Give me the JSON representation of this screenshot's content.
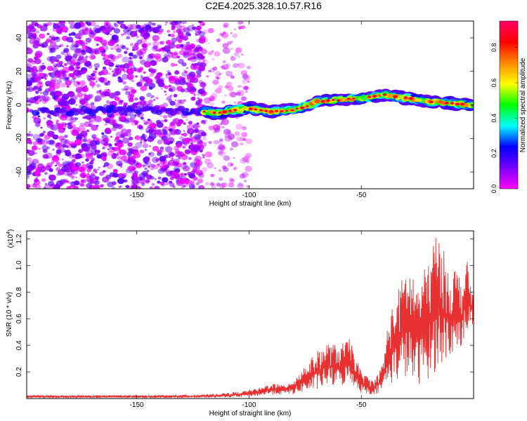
{
  "title": "C2E4.2025.328.10.57.R16",
  "chart_data": [
    {
      "type": "heatmap",
      "title": "C2E4.2025.328.10.57.R16",
      "xlabel": "Height of straight line (km)",
      "ylabel": "Frequency (Hz)",
      "xlim": [
        -199,
        0
      ],
      "ylim": [
        -50,
        50
      ],
      "xticks": [
        -150,
        -100,
        -50
      ],
      "yticks": [
        -40,
        -20,
        0,
        20,
        40
      ],
      "colorbar": {
        "label": "Normalized spectral amplitude",
        "range": [
          0,
          0.95
        ],
        "ticks": [
          "0.0",
          "0.2",
          "0.4",
          "0.6",
          "0.8"
        ],
        "tick_values": [
          0,
          0.2,
          0.4,
          0.6,
          0.8
        ],
        "colormap": [
          "#ff00ff",
          "#7700ff",
          "#0000ff",
          "#00ffff",
          "#00ff00",
          "#ffff00",
          "#ff8800",
          "#ff0000",
          "#ff0066"
        ]
      },
      "ridge": {
        "x": [
          -200,
          -180,
          -160,
          -140,
          -120,
          -115,
          -110,
          -100,
          -90,
          -80,
          -75,
          -70,
          -60,
          -50,
          -40,
          -30,
          -20,
          -10,
          0
        ],
        "y": [
          -4,
          -4,
          -3,
          -3,
          -4,
          -5,
          -4,
          -2,
          -4,
          -3,
          -1,
          2,
          3,
          4,
          6,
          4,
          2,
          1,
          0
        ]
      },
      "noise_regions": [
        {
          "x_from": -199,
          "x_to": -120,
          "level": "dense"
        },
        {
          "x_from": -120,
          "x_to": -100,
          "level": "sparse"
        }
      ]
    },
    {
      "type": "line",
      "xlabel": "Height of straight line (km)",
      "ylabel": "SNR (10 * v/v)",
      "exponent_label": "(x10",
      "exponent_sup": "4",
      "exponent_close": ")",
      "xlim": [
        -199,
        0
      ],
      "ylim": [
        0,
        1.26
      ],
      "xticks": [
        -150,
        -100,
        -50
      ],
      "yticks": [
        0.2,
        0.4,
        0.6,
        0.8,
        1.0,
        1.2
      ],
      "ytick_labels": [
        "0.2",
        "0.4",
        "0.6",
        "0.8",
        "1.0",
        "1.2"
      ],
      "series": [
        {
          "name": "SNR",
          "color": "#e83030",
          "envelope": {
            "x": [
              -199,
              -150,
              -120,
              -105,
              -95,
              -90,
              -85,
              -80,
              -75,
              -70,
              -65,
              -60,
              -55,
              -50,
              -45,
              -42,
              -40,
              -38,
              -35,
              -30,
              -27,
              -25,
              -20,
              -17,
              -15,
              -10,
              -8,
              -5,
              -3,
              0
            ],
            "max": [
              0.025,
              0.025,
              0.03,
              0.05,
              0.08,
              0.12,
              0.1,
              0.15,
              0.25,
              0.35,
              0.42,
              0.4,
              0.45,
              0.2,
              0.14,
              0.2,
              0.3,
              0.6,
              0.75,
              1.0,
              0.95,
              0.85,
              1.05,
              1.25,
              1.2,
              0.95,
              1.0,
              0.88,
              1.05,
              0.75
            ],
            "min": [
              0.005,
              0.005,
              0.005,
              0.01,
              0.02,
              0.03,
              0.03,
              0.03,
              0.05,
              0.06,
              0.1,
              0.08,
              0.12,
              0.04,
              0.03,
              0.04,
              0.08,
              0.1,
              0.12,
              0.15,
              0.12,
              0.1,
              0.15,
              0.2,
              0.25,
              0.3,
              0.35,
              0.4,
              0.5,
              0.55
            ]
          }
        }
      ]
    }
  ]
}
